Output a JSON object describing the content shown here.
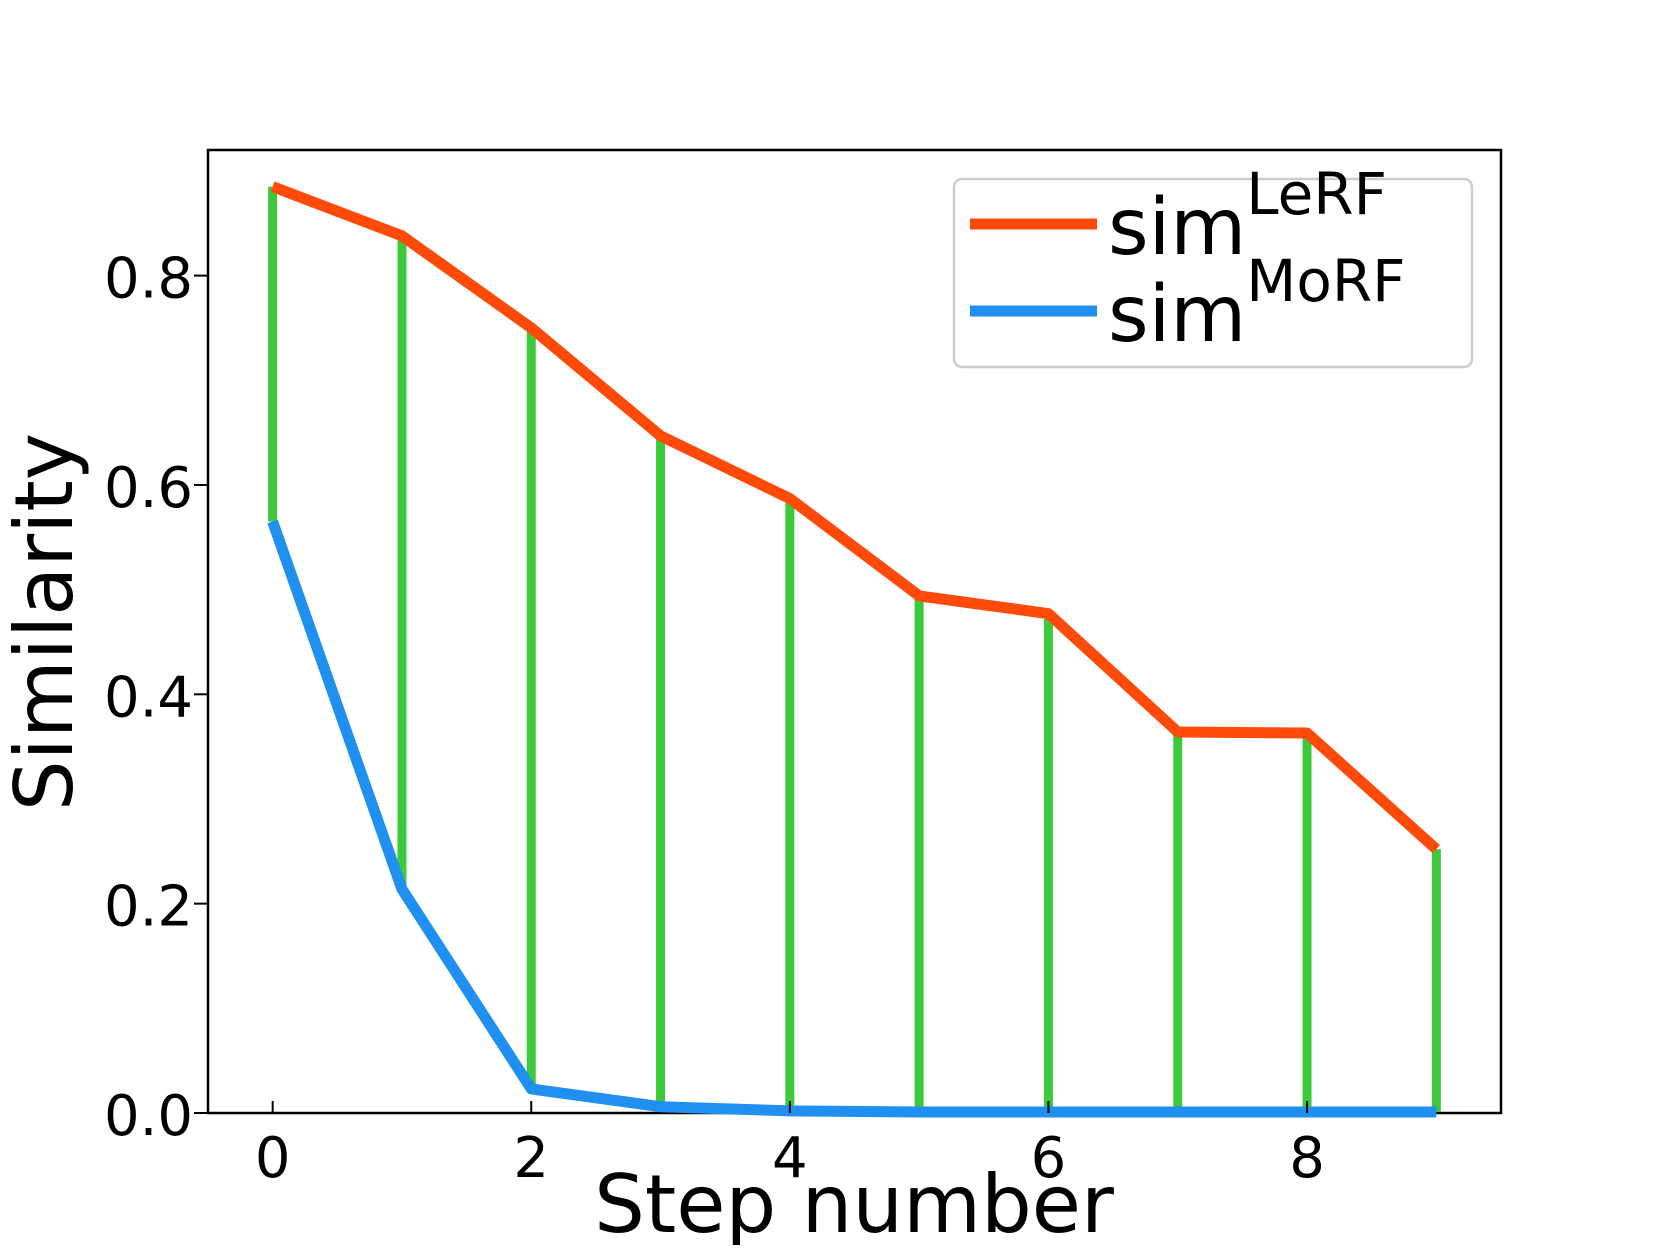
{
  "chart_data": {
    "type": "line",
    "xlabel": "Step number",
    "ylabel": "Similarity",
    "xlim": [
      -0.5,
      9.5
    ],
    "ylim": [
      0.0,
      0.92
    ],
    "x_ticks": [
      0,
      2,
      4,
      6,
      8
    ],
    "x_tick_labels": [
      "0",
      "2",
      "4",
      "6",
      "8"
    ],
    "y_ticks": [
      0.0,
      0.2,
      0.4,
      0.6,
      0.8
    ],
    "y_tick_labels": [
      "0.0",
      "0.2",
      "0.4",
      "0.6",
      "0.8"
    ],
    "grid": false,
    "legend_position": "top-right",
    "x": [
      0,
      1,
      2,
      3,
      4,
      5,
      6,
      7,
      8,
      9
    ],
    "series": [
      {
        "name_base": "sim",
        "name_sup": "LeRF",
        "color": "#ff4a0a",
        "values": [
          0.885,
          0.838,
          0.75,
          0.647,
          0.587,
          0.494,
          0.477,
          0.364,
          0.363,
          0.252
        ]
      },
      {
        "name_base": "sim",
        "name_sup": "MoRF",
        "color": "#1f8ff0",
        "values": [
          0.565,
          0.214,
          0.023,
          0.006,
          0.002,
          0.001,
          0.001,
          0.001,
          0.001,
          0.001
        ]
      }
    ],
    "gap_color": "#3cc93c"
  }
}
